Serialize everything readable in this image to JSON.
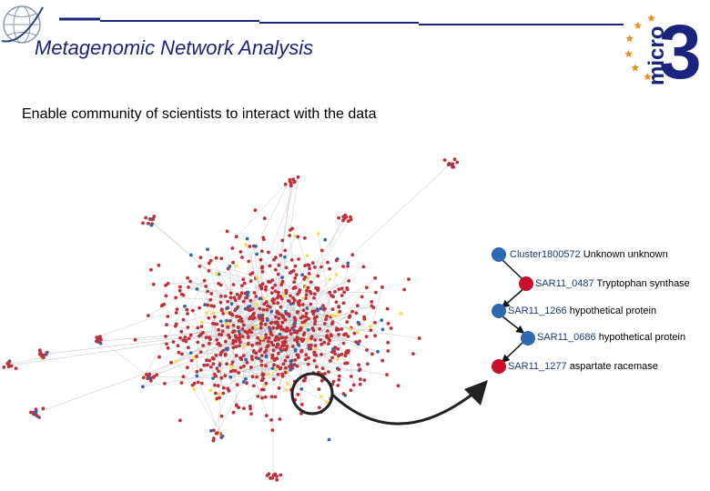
{
  "slide": {
    "title": "Metagenomic Network Analysis",
    "subtitle": "Enable community of scientists to interact with the data"
  },
  "logo": {
    "text": "micro",
    "number": "3",
    "star_color": "#f08c1e",
    "text_color": "#1a237e"
  },
  "colors": {
    "title": "#1a237e",
    "red_node": "#c8102e",
    "blue_node": "#2f67b1",
    "yellow_node": "#f1e04a",
    "network_node": "#c0303a",
    "edge": "#bcbcbc"
  },
  "detail_nodes": [
    {
      "id": "Cluster1800572",
      "description": "Unknown unknown",
      "color": "blue"
    },
    {
      "id": "SAR11_0487",
      "description": "Tryptophan synthase",
      "color": "red"
    },
    {
      "id": "SAR11_1266",
      "description": "hypothetical protein",
      "color": "blue"
    },
    {
      "id": "SAR11_0686",
      "description": "hypothetical protein",
      "color": "blue"
    },
    {
      "id": "SAR11_1277",
      "description": "aspartate racemase",
      "color": "red"
    }
  ]
}
